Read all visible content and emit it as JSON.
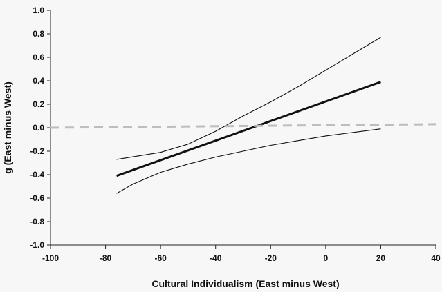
{
  "chart_data": {
    "type": "line",
    "title": "",
    "xlabel": "Cultural Individualism (East minus West)",
    "ylabel": "g (East minus West)",
    "xlim": [
      -100,
      40
    ],
    "ylim": [
      -1.0,
      1.0
    ],
    "x_ticks": [
      -100,
      -80,
      -60,
      -40,
      -20,
      0,
      20,
      40
    ],
    "x_tick_labels": [
      "-100",
      "-80",
      "-60",
      "-40",
      "-20",
      "0",
      "20",
      "40"
    ],
    "y_ticks": [
      -1.0,
      -0.8,
      -0.6,
      -0.4,
      -0.2,
      0.0,
      0.2,
      0.4,
      0.6,
      0.8,
      1.0
    ],
    "y_tick_labels": [
      "-1.0",
      "-0.8",
      "-0.6",
      "-0.4",
      "-0.2",
      "0.0",
      "0.2",
      "0.4",
      "0.6",
      "0.8",
      "1.0"
    ],
    "grid": false,
    "legend": "none",
    "series": [
      {
        "role": "regression line",
        "color": "#111111",
        "style": "solid-thick",
        "x": [
          -76,
          20
        ],
        "y": [
          -0.41,
          0.39
        ]
      },
      {
        "role": "upper confidence band",
        "color": "#111111",
        "style": "solid-thin",
        "x": [
          -76,
          -60,
          -50,
          -40,
          -30,
          -20,
          -10,
          0,
          10,
          20
        ],
        "y": [
          -0.27,
          -0.21,
          -0.14,
          -0.03,
          0.1,
          0.22,
          0.35,
          0.49,
          0.63,
          0.77
        ]
      },
      {
        "role": "lower confidence band",
        "color": "#111111",
        "style": "solid-thin",
        "x": [
          -76,
          -70,
          -60,
          -50,
          -40,
          -30,
          -20,
          -10,
          0,
          10,
          20
        ],
        "y": [
          -0.56,
          -0.48,
          -0.38,
          -0.31,
          -0.25,
          -0.2,
          -0.15,
          -0.11,
          -0.07,
          -0.04,
          -0.01
        ]
      },
      {
        "role": "reference line",
        "color": "#bdbdbd",
        "style": "dashed",
        "x": [
          -100,
          40
        ],
        "y": [
          0.0,
          0.03
        ]
      }
    ]
  }
}
